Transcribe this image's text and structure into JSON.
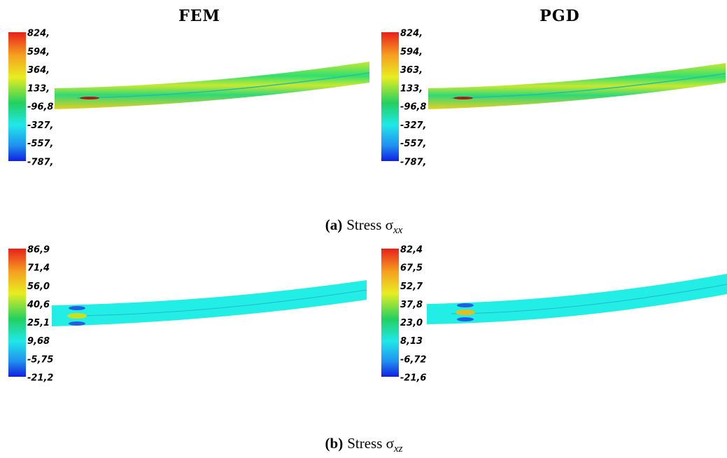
{
  "columns": [
    "FEM",
    "PGD"
  ],
  "subfigures": [
    {
      "label": "(a)",
      "caption": "Stress σ",
      "subscript": "xx",
      "colorbars": [
        [
          "824,",
          "594,",
          "364,",
          "133,",
          "-96,8",
          "-327,",
          "-557,",
          "-787,"
        ],
        [
          "824,",
          "594,",
          "363,",
          "133,",
          "-96,8",
          "-327,",
          "-557,",
          "-787,"
        ]
      ]
    },
    {
      "label": "(b)",
      "caption": "Stress σ",
      "subscript": "xz",
      "colorbars": [
        [
          "86,9",
          "71,4",
          "56,0",
          "40,6",
          "25,1",
          "9,68",
          "-5,75",
          "-21,2"
        ],
        [
          "82,4",
          "67,5",
          "52,7",
          "37,8",
          "23,0",
          "8,13",
          "-6,72",
          "-21,6"
        ]
      ]
    }
  ]
}
